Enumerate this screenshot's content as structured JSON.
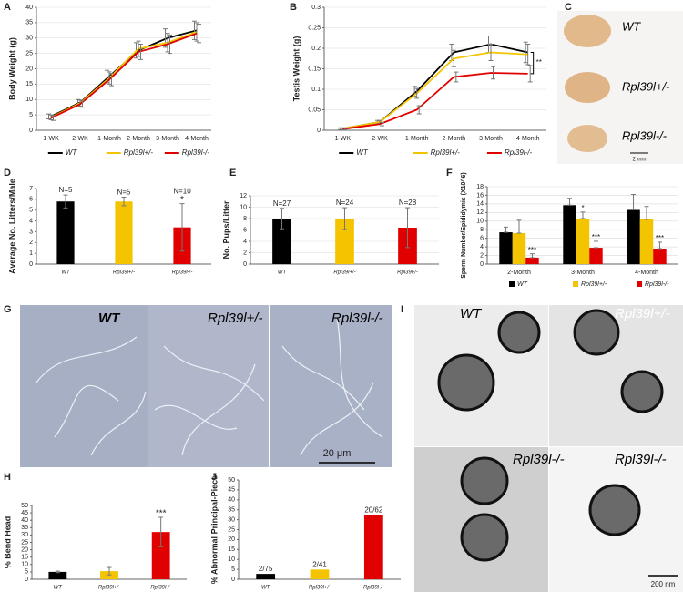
{
  "chart_data": [
    {
      "type": "line",
      "panel": "A",
      "ylabel": "Body Weight (g)",
      "categories": [
        "1-WK",
        "2-WK",
        "1-Month",
        "2-Month",
        "3-Month",
        "4-Month"
      ],
      "series": [
        {
          "name": "WT",
          "color": "#000000",
          "values": [
            4.5,
            9,
            17.5,
            26,
            30,
            32.5
          ],
          "errors": [
            0.8,
            1,
            2,
            2.5,
            3,
            3
          ]
        },
        {
          "name": "Rpl39l+/-",
          "color": "#f5c400",
          "values": [
            4.2,
            8.8,
            17,
            26.5,
            28.5,
            32
          ],
          "errors": [
            0.8,
            1,
            2,
            2.5,
            3,
            3
          ]
        },
        {
          "name": "Rpl39l-/-",
          "color": "#e00000",
          "values": [
            4,
            8.5,
            16.5,
            25.5,
            28,
            31.5
          ],
          "errors": [
            0.8,
            1,
            2,
            2.5,
            3,
            3
          ]
        }
      ],
      "ylim": [
        0,
        40
      ],
      "yticks": [
        0,
        5,
        10,
        15,
        20,
        25,
        30,
        35,
        40
      ],
      "grid": true,
      "legend": "bottom"
    },
    {
      "type": "line",
      "panel": "B",
      "ylabel": "Testis Weight (g)",
      "categories": [
        "1-WK",
        "2-WK",
        "1-Month",
        "2-Month",
        "3-Month",
        "4-Month"
      ],
      "series": [
        {
          "name": "WT",
          "color": "#000000",
          "values": [
            0.004,
            0.02,
            0.095,
            0.19,
            0.21,
            0.19
          ],
          "errors": [
            0.002,
            0.004,
            0.012,
            0.02,
            0.02,
            0.025
          ]
        },
        {
          "name": "Rpl39l+/-",
          "color": "#f5c400",
          "values": [
            0.004,
            0.02,
            0.09,
            0.175,
            0.19,
            0.185
          ],
          "errors": [
            0.002,
            0.004,
            0.012,
            0.02,
            0.02,
            0.025
          ]
        },
        {
          "name": "Rpl39l-/-",
          "color": "#e00000",
          "values": [
            0.003,
            0.015,
            0.05,
            0.13,
            0.14,
            0.138
          ],
          "errors": [
            0.002,
            0.004,
            0.01,
            0.012,
            0.015,
            0.02
          ]
        }
      ],
      "ylim": [
        0,
        0.3
      ],
      "yticks": [
        0,
        0.05,
        0.1,
        0.15,
        0.2,
        0.25,
        0.3
      ],
      "grid": true,
      "legend": "bottom",
      "annotation": "**"
    },
    {
      "type": "bar",
      "panel": "D",
      "ylabel": "Average No. Litters/Male",
      "categories": [
        "WT",
        "Rpl39l+/-",
        "Rpl39l-/-"
      ],
      "values": [
        5.8,
        5.8,
        3.4
      ],
      "errors": [
        0.6,
        0.4,
        2.2
      ],
      "colors": [
        "#000000",
        "#f5c400",
        "#e00000"
      ],
      "bar_labels": [
        "N=5",
        "N=5",
        "N=10"
      ],
      "stars": [
        null,
        null,
        "*"
      ],
      "ylim": [
        0,
        7
      ],
      "yticks": [
        0,
        1,
        2,
        3,
        4,
        5,
        6,
        7
      ],
      "grid": false
    },
    {
      "type": "bar",
      "panel": "E",
      "ylabel": "No. Pups/Litter",
      "categories": [
        "WT",
        "Rpl39l+/-",
        "Rpl39l-/-"
      ],
      "values": [
        8,
        8,
        6.4
      ],
      "errors": [
        1.8,
        1.9,
        3.5
      ],
      "colors": [
        "#000000",
        "#f5c400",
        "#e00000"
      ],
      "bar_labels": [
        "N=27",
        "N=24",
        "N=28"
      ],
      "ylim": [
        0,
        12
      ],
      "yticks": [
        0,
        2,
        4,
        6,
        8,
        10,
        12
      ],
      "grid": true
    },
    {
      "type": "bar",
      "panel": "F",
      "ylabel": "Sperm Number/Epididymis (X10^6)",
      "categories": [
        "2-Month",
        "3-Month",
        "4-Month"
      ],
      "series": [
        {
          "name": "WT",
          "color": "#000000",
          "values": [
            7.4,
            13.7,
            12.6
          ],
          "errors": [
            1.2,
            1.6,
            3.6
          ]
        },
        {
          "name": "Rpl39l+/-",
          "color": "#f5c400",
          "values": [
            7.2,
            10.6,
            10.4
          ],
          "errors": [
            3,
            1.5,
            3
          ],
          "stars": [
            null,
            "*",
            null
          ]
        },
        {
          "name": "Rpl39l-/-",
          "color": "#e00000",
          "values": [
            1.5,
            3.8,
            3.6
          ],
          "errors": [
            0.9,
            1.5,
            1.5
          ],
          "stars": [
            "***",
            "***",
            "***"
          ]
        }
      ],
      "ylim": [
        0,
        18
      ],
      "yticks": [
        0,
        2,
        4,
        6,
        8,
        10,
        12,
        14,
        16,
        18
      ],
      "grid": true,
      "legend": "bottom"
    },
    {
      "type": "bar",
      "panel": "H",
      "ylabel": "% Bend Head",
      "categories": [
        "WT",
        "Rpl39l+/-",
        "Rpl39l-/-"
      ],
      "values": [
        5,
        5.5,
        32
      ],
      "errors": [
        0.5,
        2.5,
        10
      ],
      "colors": [
        "#000000",
        "#f5c400",
        "#e00000"
      ],
      "stars": [
        null,
        null,
        "***"
      ],
      "ylim": [
        0,
        50
      ],
      "yticks": [
        0,
        5,
        10,
        15,
        20,
        25,
        30,
        35,
        40,
        45,
        50
      ],
      "grid": false
    },
    {
      "type": "bar",
      "panel": "J",
      "ylabel": "% Abnormal Principal-Piece",
      "categories": [
        "WT",
        "Rpl39l+/-",
        "Rpl39l-/-"
      ],
      "values": [
        2.7,
        4.9,
        32.3
      ],
      "colors": [
        "#000000",
        "#f5c400",
        "#e00000"
      ],
      "bar_labels": [
        "2/75",
        "2/41",
        "20/62"
      ],
      "ylim": [
        0,
        50
      ],
      "yticks": [
        0,
        5,
        10,
        15,
        20,
        25,
        30,
        35,
        40,
        45,
        50
      ],
      "grid": false
    }
  ],
  "images": [
    {
      "panel": "C",
      "labels": [
        "WT",
        "Rpl39l+/-",
        "Rpl39l-/-"
      ],
      "scale_bar": "2 mm"
    },
    {
      "panel": "G",
      "labels": [
        "WT",
        "Rpl39l+/-",
        "Rpl39l-/-"
      ],
      "scale_bar": "20 μm"
    },
    {
      "panel": "I",
      "labels": [
        "WT",
        "Rpl39l+/-",
        "Rpl39l-/-",
        "Rpl39l-/-"
      ],
      "scale_bar": "200 nm"
    }
  ]
}
